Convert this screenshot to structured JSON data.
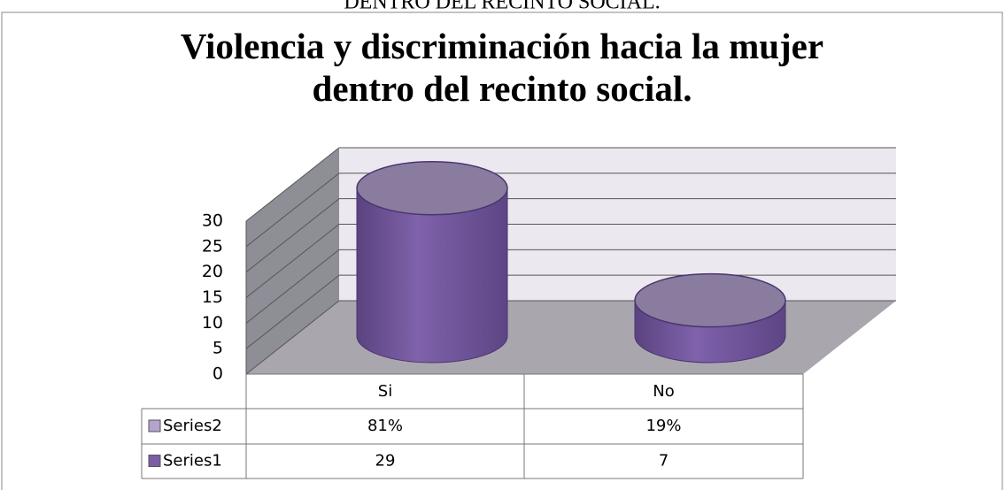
{
  "header_text": "DENTRO DEL RECINTO SOCIAL.",
  "chart_data": {
    "type": "cylinder3d",
    "title": "Violencia y discriminación hacia la mujer dentro del recinto social.",
    "categories": [
      "Si",
      "No"
    ],
    "series": [
      {
        "name": "Series1",
        "color": "#7b5ea6",
        "values": [
          29,
          7
        ]
      },
      {
        "name": "Series2",
        "color": "#b4a4cc",
        "values": [
          81,
          19
        ],
        "value_labels": [
          "81%",
          "19%"
        ]
      }
    ],
    "ylim": [
      0,
      30
    ],
    "yticks": [
      0,
      5,
      10,
      15,
      20,
      25,
      30
    ],
    "grid": true,
    "data_table": true
  }
}
